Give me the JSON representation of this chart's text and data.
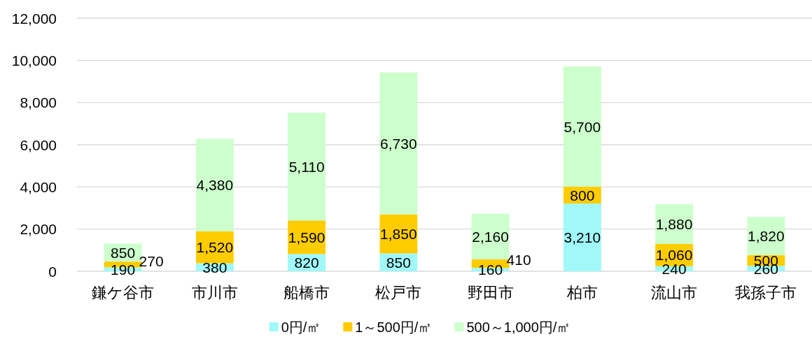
{
  "chart_data": {
    "type": "bar",
    "stacked": true,
    "categories": [
      "鎌ケ谷市",
      "市川市",
      "船橋市",
      "松戸市",
      "野田市",
      "柏市",
      "流山市",
      "我孫子市"
    ],
    "series": [
      {
        "name": "0円/㎡",
        "color": "#a0f8f8",
        "values": [
          190,
          380,
          820,
          850,
          160,
          3210,
          240,
          260
        ],
        "value_labels": [
          "190",
          "380",
          "820",
          "850",
          "160",
          "3,210",
          "240",
          "260"
        ]
      },
      {
        "name": "1～500円/㎡",
        "color": "#ffcc00",
        "values": [
          270,
          1520,
          1590,
          1850,
          410,
          800,
          1060,
          500
        ],
        "value_labels": [
          "270",
          "1,520",
          "1,590",
          "1,850",
          "410",
          "800",
          "1,060",
          "500"
        ]
      },
      {
        "name": "500～1,000円/㎡",
        "color": "#ccffcc",
        "values": [
          850,
          4380,
          5110,
          6730,
          2160,
          5700,
          1880,
          1820
        ],
        "value_labels": [
          "850",
          "4,380",
          "5,110",
          "6,730",
          "2,160",
          "5,700",
          "1,880",
          "1,820"
        ]
      }
    ],
    "ylim": [
      0,
      12000
    ],
    "yticks": [
      0,
      {
        "value": 2000,
        "label": "2,000"
      },
      {
        "value": 4000,
        "label": "4,000"
      },
      {
        "value": 6000,
        "label": "6,000"
      },
      {
        "value": 8000,
        "label": "8,000"
      },
      {
        "value": 10000,
        "label": "10,000"
      },
      {
        "value": 12000,
        "label": "12,000"
      }
    ],
    "grid": "y",
    "legend": "bottom"
  }
}
